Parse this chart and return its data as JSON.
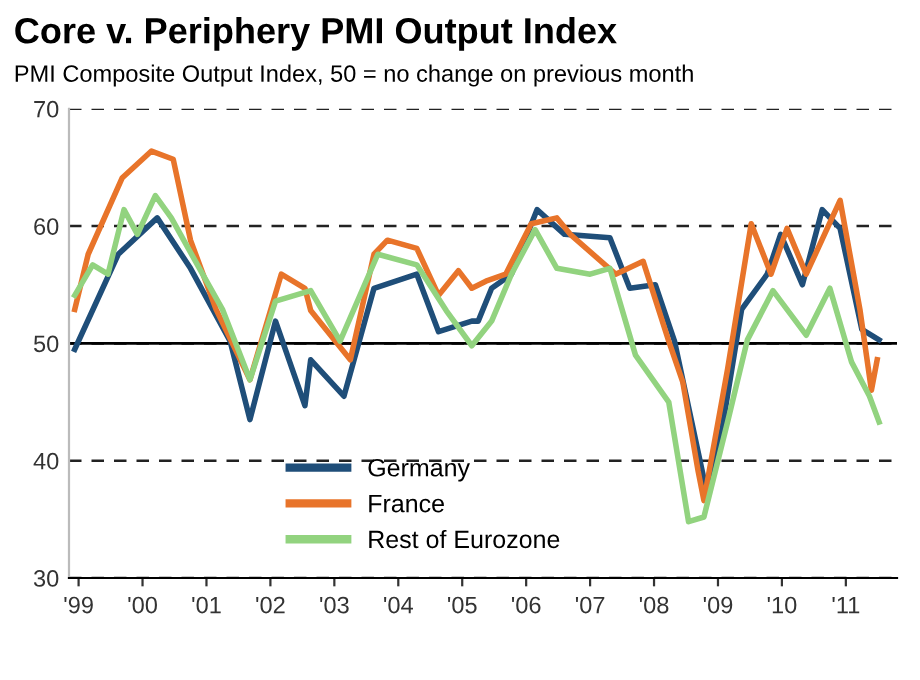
{
  "chart_data": {
    "type": "line",
    "title": "Core v. Periphery PMI Output Index",
    "subtitle": "PMI Composite Output Index, 50 = no change on previous month",
    "xlim": [
      1998.85,
      2011.8
    ],
    "xticks": [
      {
        "value": 1999,
        "label": "'99"
      },
      {
        "value": 2000,
        "label": "'00"
      },
      {
        "value": 2001,
        "label": "'01"
      },
      {
        "value": 2002,
        "label": "'02"
      },
      {
        "value": 2003,
        "label": "'03"
      },
      {
        "value": 2004,
        "label": "'04"
      },
      {
        "value": 2005,
        "label": "'05"
      },
      {
        "value": 2006,
        "label": "'06"
      },
      {
        "value": 2007,
        "label": "'07"
      },
      {
        "value": 2008,
        "label": "'08"
      },
      {
        "value": 2009,
        "label": "'09"
      },
      {
        "value": 2010,
        "label": "'10"
      },
      {
        "value": 2011,
        "label": "'11"
      }
    ],
    "ylim": [
      30,
      70
    ],
    "yticks": [
      30,
      40,
      50,
      60,
      70
    ],
    "grid": "y",
    "legend": "bottom",
    "line_style": "solid",
    "marker": "none",
    "ref_lines": [
      {
        "axis": "y",
        "value": 50,
        "label": null,
        "color": "#000000"
      }
    ],
    "series": [
      {
        "name": "Germany",
        "color": "#1f4e79",
        "x": [
          1998.94,
          1999.62,
          2000.23,
          2000.75,
          2001.37,
          2001.68,
          2002.08,
          2002.54,
          2002.63,
          2003.15,
          2003.62,
          2004.29,
          2004.63,
          2005.15,
          2005.25,
          2005.46,
          2005.77,
          2006.17,
          2006.6,
          2007.31,
          2007.62,
          2008.02,
          2008.32,
          2008.82,
          2009.06,
          2009.37,
          2009.77,
          2009.98,
          2010.32,
          2010.63,
          2010.91,
          2011.25,
          2011.52
        ],
        "values": [
          49.5,
          57.6,
          60.7,
          56.4,
          50.2,
          43.5,
          51.9,
          44.7,
          48.6,
          45.5,
          54.7,
          55.9,
          51.0,
          51.9,
          51.9,
          54.7,
          55.9,
          61.4,
          59.3,
          59.0,
          54.7,
          55.0,
          50.2,
          37.4,
          42.6,
          52.9,
          55.9,
          59.3,
          55.0,
          61.4,
          59.8,
          51.2,
          50.3
        ]
      },
      {
        "name": "France",
        "color": "#e8742a",
        "x": [
          1998.94,
          1999.15,
          1999.68,
          2000.14,
          2000.48,
          2000.75,
          2001.15,
          2001.68,
          2002.17,
          2002.54,
          2002.63,
          2003.25,
          2003.62,
          2003.83,
          2004.29,
          2004.63,
          2004.94,
          2005.15,
          2005.37,
          2005.68,
          2006.08,
          2006.48,
          2006.69,
          2007.4,
          2007.83,
          2008.23,
          2008.45,
          2008.69,
          2008.78,
          2009.15,
          2009.52,
          2009.83,
          2010.08,
          2010.38,
          2010.91,
          2011.22,
          2011.4,
          2011.49
        ],
        "values": [
          52.9,
          57.6,
          64.1,
          66.4,
          65.7,
          58.8,
          52.9,
          46.9,
          55.9,
          54.7,
          52.8,
          48.6,
          57.6,
          58.8,
          58.1,
          54.1,
          56.2,
          54.7,
          55.3,
          55.9,
          60.2,
          60.7,
          59.3,
          55.9,
          57.0,
          50.2,
          46.7,
          39.1,
          36.6,
          47.8,
          60.2,
          55.9,
          59.8,
          55.9,
          62.2,
          52.9,
          46.0,
          48.6
        ]
      },
      {
        "name": "Rest of Eurozone",
        "color": "#92d37f",
        "x": [
          1998.94,
          1999.22,
          1999.46,
          1999.71,
          1999.92,
          2000.2,
          2000.45,
          2000.94,
          2001.25,
          2001.68,
          2002.08,
          2002.63,
          2003.09,
          2003.68,
          2004.29,
          2004.75,
          2005.15,
          2005.46,
          2005.77,
          2006.14,
          2006.48,
          2007.0,
          2007.31,
          2007.71,
          2008.23,
          2008.54,
          2008.78,
          2009.15,
          2009.46,
          2009.86,
          2010.38,
          2010.75,
          2011.09,
          2011.37,
          2011.52
        ],
        "values": [
          54.1,
          56.7,
          55.9,
          61.4,
          59.3,
          62.6,
          60.7,
          55.9,
          52.9,
          46.9,
          53.6,
          54.5,
          50.2,
          57.6,
          56.7,
          52.8,
          49.8,
          51.9,
          55.9,
          59.7,
          56.4,
          55.9,
          56.4,
          49.0,
          45.0,
          34.8,
          35.2,
          43.3,
          50.3,
          54.5,
          50.7,
          54.7,
          48.4,
          45.5,
          43.3
        ]
      }
    ]
  }
}
